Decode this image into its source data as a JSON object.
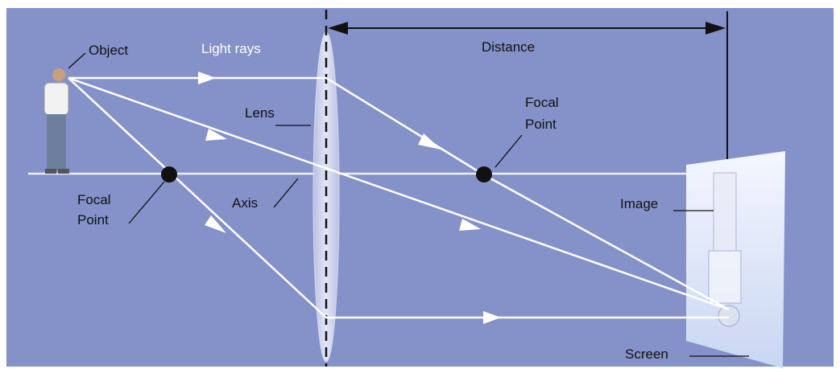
{
  "labels": {
    "object": "Object",
    "light_rays": "Light rays",
    "lens": "Lens",
    "focal_point_right": [
      "Focal",
      "Point"
    ],
    "focal_point_left": [
      "Focal",
      "Point"
    ],
    "axis": "Axis",
    "distance": "Distance",
    "image": "Image",
    "screen": "Screen"
  }
}
